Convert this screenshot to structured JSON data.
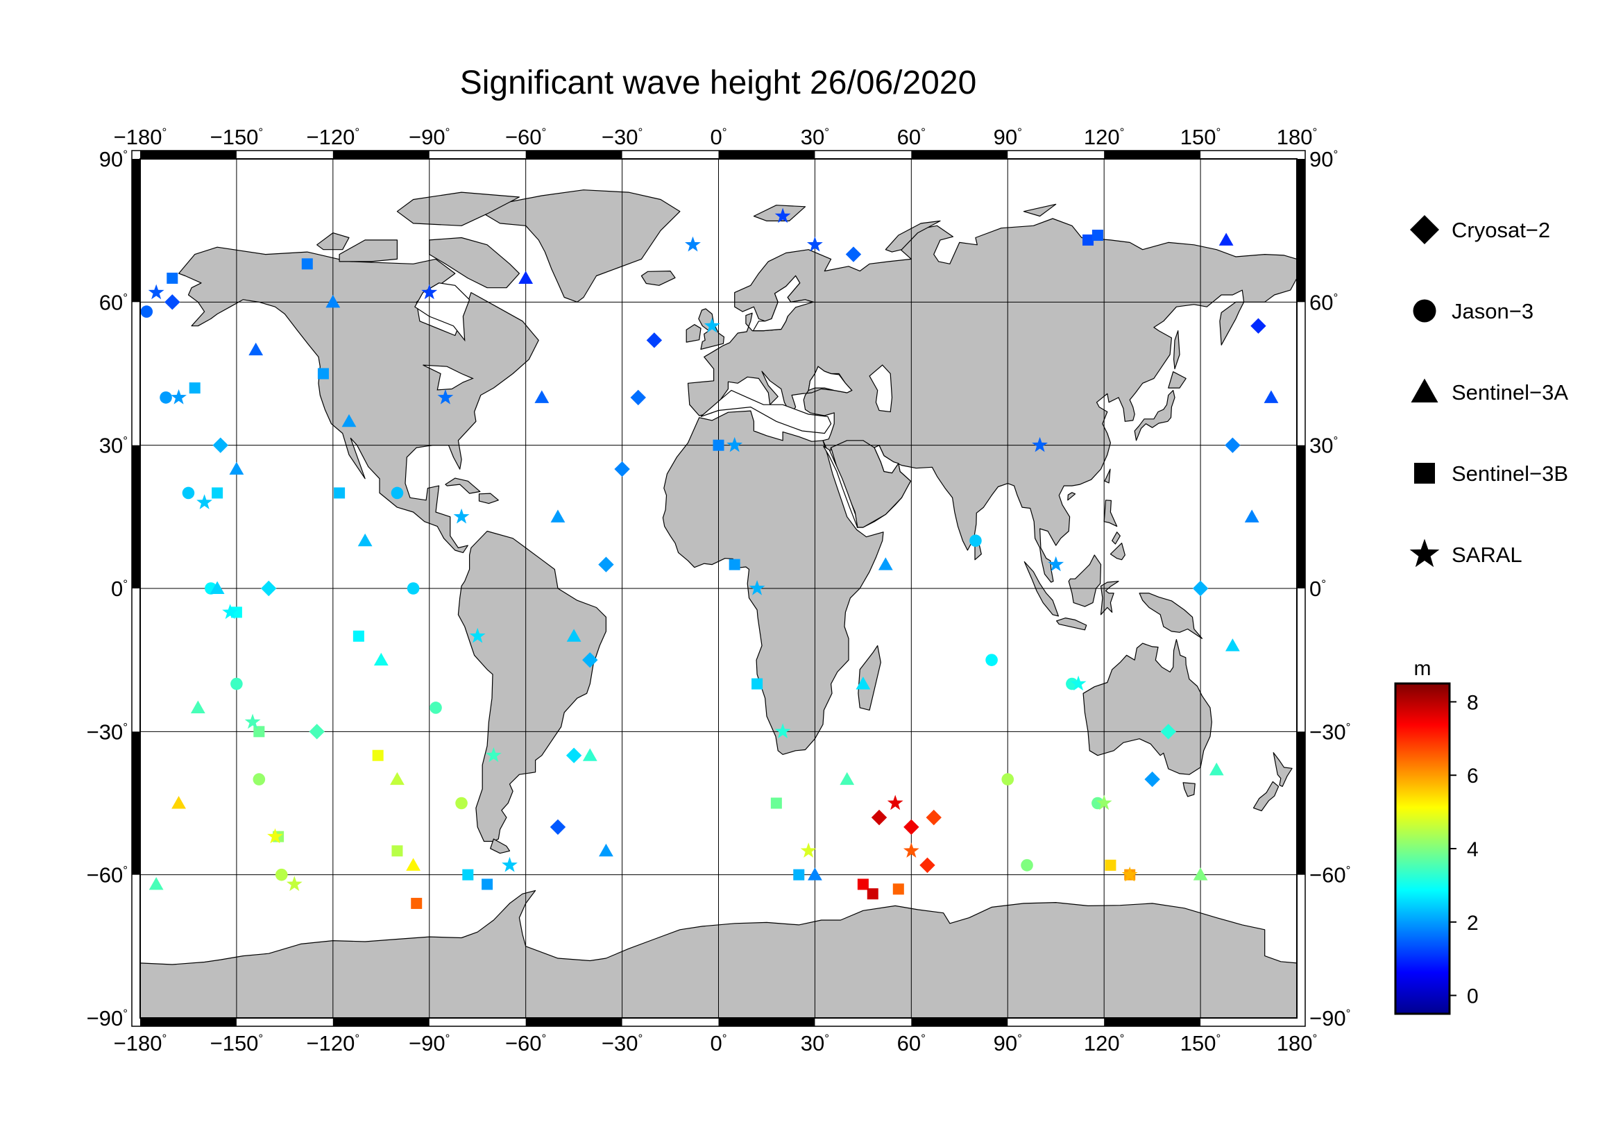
{
  "title": "Significant wave height 26/06/2020",
  "map": {
    "projection": "equirectangular",
    "lon_range": [
      -180,
      180
    ],
    "lat_range": [
      -90,
      90
    ],
    "lon_ticks": [
      "−180",
      "−150",
      "−120",
      "−90",
      "−60",
      "−30",
      "0",
      "30",
      "60",
      "90",
      "120",
      "150",
      "180"
    ],
    "lat_ticks": [
      "90",
      "60",
      "30",
      "0",
      "−30",
      "−60",
      "−90"
    ],
    "degree_symbol": "°",
    "land_color": "#bebebe",
    "ocean_color": "#ffffff",
    "grid": true
  },
  "legend": {
    "items": [
      {
        "label": "Cryosat−2",
        "marker": "diamond"
      },
      {
        "label": "Jason−3",
        "marker": "circle"
      },
      {
        "label": "Sentinel−3A",
        "marker": "triangle"
      },
      {
        "label": "Sentinel−3B",
        "marker": "square"
      },
      {
        "label": "SARAL",
        "marker": "star"
      }
    ]
  },
  "colorbar": {
    "unit": "m",
    "range": [
      -0.5,
      8.5
    ],
    "ticks": [
      "8",
      "6",
      "4",
      "2",
      "0"
    ],
    "colormap": "jet"
  },
  "chart_data": {
    "type": "scatter",
    "title": "Significant wave height 26/06/2020",
    "xlim": [
      -180,
      180
    ],
    "ylim": [
      -90,
      90
    ],
    "value_unit": "m",
    "color_range": [
      -0.5,
      8.5
    ],
    "series": [
      {
        "name": "Cryosat−2",
        "marker": "diamond",
        "points": [
          [
            -20,
            52,
            1.2
          ],
          [
            -25,
            40,
            1.6
          ],
          [
            -30,
            25,
            1.8
          ],
          [
            -35,
            5,
            2.0
          ],
          [
            -40,
            -15,
            2.2
          ],
          [
            -45,
            -35,
            2.6
          ],
          [
            -50,
            -50,
            1.4
          ],
          [
            50,
            -48,
            7.8
          ],
          [
            60,
            -50,
            7.5
          ],
          [
            65,
            -58,
            7.0
          ],
          [
            67,
            -48,
            6.8
          ],
          [
            42,
            70,
            1.5
          ],
          [
            -170,
            60,
            1.3
          ],
          [
            -155,
            30,
            2.2
          ],
          [
            -140,
            0,
            2.6
          ],
          [
            -125,
            -30,
            3.5
          ],
          [
            168,
            55,
            1.0
          ],
          [
            160,
            30,
            1.8
          ],
          [
            150,
            0,
            2.2
          ],
          [
            140,
            -30,
            3.2
          ],
          [
            135,
            -40,
            2.0
          ]
        ]
      },
      {
        "name": "Jason−3",
        "marker": "circle",
        "points": [
          [
            -178,
            58,
            1.5
          ],
          [
            -172,
            40,
            2.0
          ],
          [
            -165,
            20,
            2.4
          ],
          [
            -158,
            0,
            2.8
          ],
          [
            -150,
            -20,
            3.4
          ],
          [
            -143,
            -40,
            4.2
          ],
          [
            -136,
            -60,
            4.5
          ],
          [
            -100,
            20,
            2.3
          ],
          [
            -95,
            0,
            2.5
          ],
          [
            -88,
            -25,
            3.5
          ],
          [
            -80,
            -45,
            4.5
          ],
          [
            80,
            10,
            2.4
          ],
          [
            85,
            -15,
            2.8
          ],
          [
            90,
            -40,
            4.4
          ],
          [
            96,
            -58,
            4.0
          ],
          [
            110,
            -20,
            3.2
          ],
          [
            118,
            -45,
            3.8
          ]
        ]
      },
      {
        "name": "Sentinel−3A",
        "marker": "triangle",
        "points": [
          [
            -175,
            -62,
            3.5
          ],
          [
            -168,
            -45,
            5.5
          ],
          [
            -162,
            -25,
            3.5
          ],
          [
            -156,
            0,
            2.5
          ],
          [
            -150,
            25,
            2.0
          ],
          [
            -144,
            50,
            1.5
          ],
          [
            -120,
            60,
            1.8
          ],
          [
            -115,
            35,
            2.0
          ],
          [
            -110,
            10,
            2.3
          ],
          [
            -105,
            -15,
            3.0
          ],
          [
            -100,
            -40,
            4.6
          ],
          [
            -95,
            -58,
            5.2
          ],
          [
            -60,
            65,
            1.0
          ],
          [
            -55,
            40,
            1.5
          ],
          [
            -50,
            15,
            2.0
          ],
          [
            -45,
            -10,
            2.4
          ],
          [
            -40,
            -35,
            3.3
          ],
          [
            -35,
            -55,
            2.0
          ],
          [
            30,
            -60,
            1.8
          ],
          [
            40,
            -40,
            3.5
          ],
          [
            45,
            -20,
            2.6
          ],
          [
            52,
            5,
            2.0
          ],
          [
            150,
            -60,
            4.0
          ],
          [
            155,
            -38,
            3.4
          ],
          [
            160,
            -12,
            2.5
          ],
          [
            166,
            15,
            1.8
          ],
          [
            172,
            40,
            1.3
          ],
          [
            158,
            73,
            1.0
          ]
        ]
      },
      {
        "name": "Sentinel−3B",
        "marker": "square",
        "points": [
          [
            -170,
            65,
            1.6
          ],
          [
            -163,
            42,
            2.2
          ],
          [
            -156,
            20,
            2.5
          ],
          [
            -150,
            -5,
            2.9
          ],
          [
            -143,
            -30,
            3.8
          ],
          [
            -137,
            -52,
            4.2
          ],
          [
            -128,
            68,
            1.7
          ],
          [
            -123,
            45,
            2.0
          ],
          [
            -118,
            20,
            2.3
          ],
          [
            -112,
            -10,
            2.8
          ],
          [
            -106,
            -35,
            5.0
          ],
          [
            -100,
            -55,
            4.5
          ],
          [
            -94,
            -66,
            6.5
          ],
          [
            -78,
            -60,
            2.5
          ],
          [
            -72,
            -62,
            2.0
          ],
          [
            0,
            30,
            1.8
          ],
          [
            5,
            5,
            2.0
          ],
          [
            12,
            -20,
            2.5
          ],
          [
            18,
            -45,
            3.8
          ],
          [
            25,
            -60,
            2.2
          ],
          [
            45,
            -62,
            7.5
          ],
          [
            48,
            -64,
            7.8
          ],
          [
            56,
            -63,
            6.5
          ],
          [
            115,
            73,
            1.3
          ],
          [
            118,
            74,
            1.4
          ],
          [
            128,
            -60,
            6.0
          ],
          [
            122,
            -58,
            5.5
          ]
        ]
      },
      {
        "name": "SARAL",
        "marker": "star",
        "points": [
          [
            -175,
            62,
            1.4
          ],
          [
            -168,
            40,
            2.0
          ],
          [
            -160,
            18,
            2.4
          ],
          [
            -152,
            -5,
            2.8
          ],
          [
            -145,
            -28,
            3.5
          ],
          [
            -138,
            -52,
            5.0
          ],
          [
            -132,
            -62,
            4.6
          ],
          [
            -90,
            62,
            1.2
          ],
          [
            -85,
            40,
            1.6
          ],
          [
            -80,
            15,
            2.2
          ],
          [
            -75,
            -10,
            2.6
          ],
          [
            -70,
            -35,
            3.4
          ],
          [
            -65,
            -58,
            2.4
          ],
          [
            -8,
            72,
            1.8
          ],
          [
            -2,
            55,
            2.3
          ],
          [
            5,
            30,
            2.0
          ],
          [
            12,
            0,
            2.2
          ],
          [
            20,
            -30,
            3.2
          ],
          [
            28,
            -55,
            4.8
          ],
          [
            20,
            78,
            1.2
          ],
          [
            30,
            72,
            1.3
          ],
          [
            55,
            -45,
            7.6
          ],
          [
            60,
            -55,
            6.6
          ],
          [
            100,
            30,
            1.5
          ],
          [
            105,
            5,
            2.0
          ],
          [
            112,
            -20,
            3.0
          ],
          [
            120,
            -45,
            4.2
          ],
          [
            128,
            -60,
            5.8
          ]
        ]
      }
    ]
  }
}
